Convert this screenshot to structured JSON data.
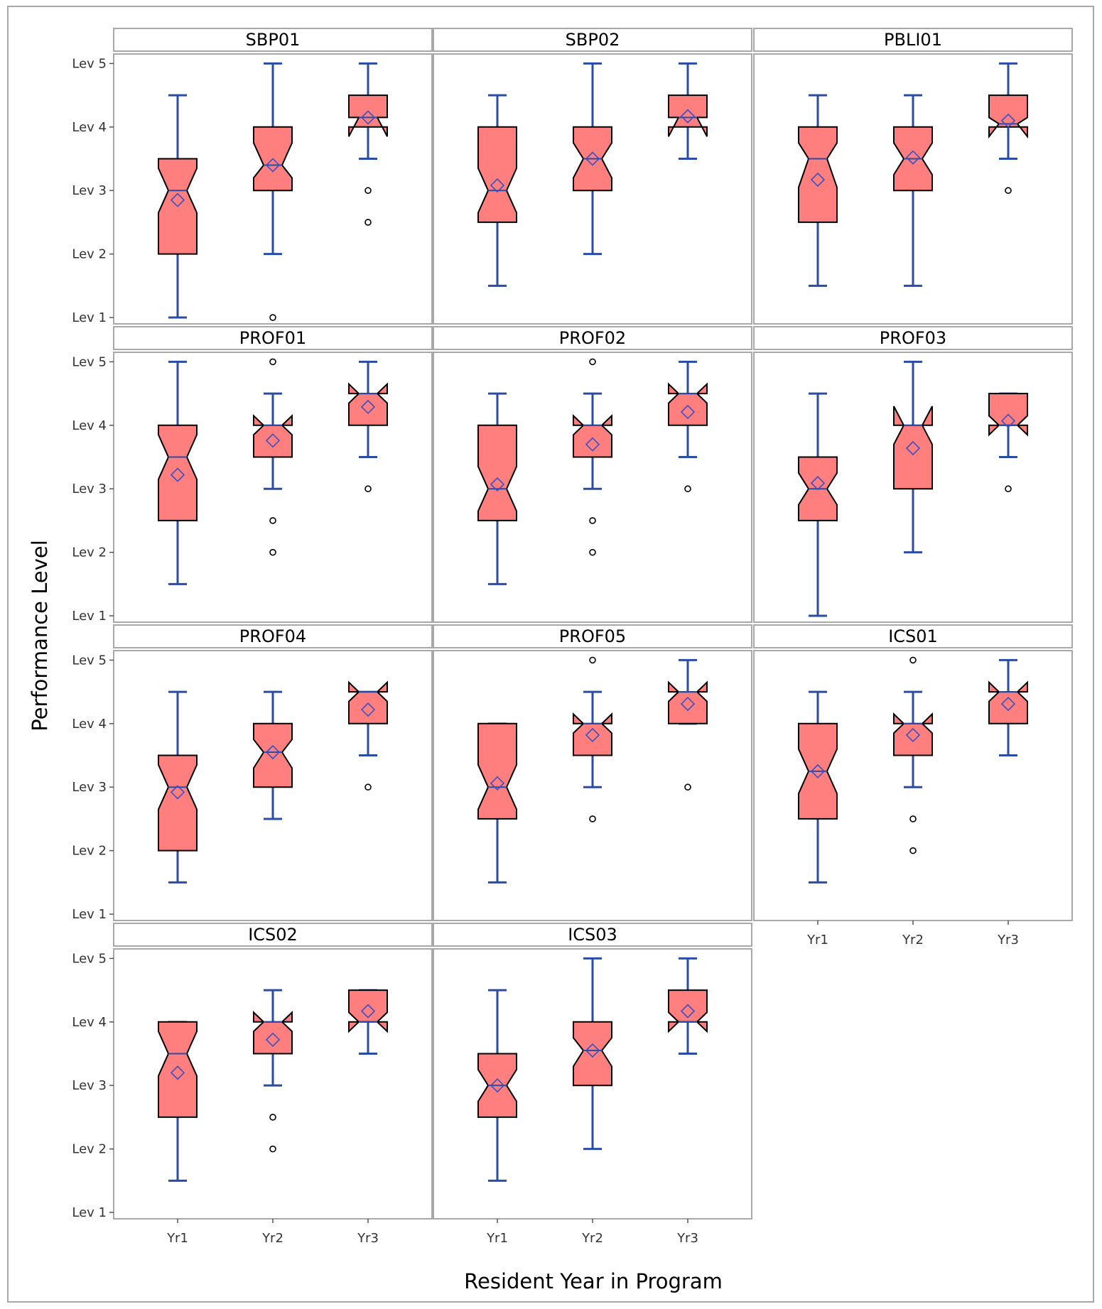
{
  "colors": {
    "box_fill": "#ff7f7f",
    "whisker": "#2a4ba6",
    "mean_marker": "#3b4fc4",
    "outlier": "#000000",
    "header_fill": "#ffffff",
    "frame": "#a8a8a8"
  },
  "chart_data": {
    "type": "box",
    "layout": "panel grid, 3 columns x 4 rows",
    "ylabel": "Performance Level",
    "xlabel": "Resident Year in Program",
    "categories": [
      "Yr1",
      "Yr2",
      "Yr3"
    ],
    "y_ticks": [
      {
        "value": 1,
        "label": "Lev 1"
      },
      {
        "value": 2,
        "label": "Lev 2"
      },
      {
        "value": 3,
        "label": "Lev 3"
      },
      {
        "value": 4,
        "label": "Lev 4"
      },
      {
        "value": 5,
        "label": "Lev 5"
      }
    ],
    "ylim": [
      0.9,
      5.15
    ],
    "notched": true,
    "panels": [
      {
        "title": "SBP01",
        "boxes": [
          {
            "category": "Yr1",
            "min": 1,
            "q1": 2,
            "median": 3,
            "q3": 3.5,
            "max": 4.5,
            "mean": 2.85,
            "notch_low": 2.65,
            "notch_high": 3.35,
            "outliers": []
          },
          {
            "category": "Yr2",
            "min": 2,
            "q1": 3,
            "median": 3.4,
            "q3": 4,
            "max": 5,
            "mean": 3.4,
            "notch_low": 3.2,
            "notch_high": 3.75,
            "outliers": [
              1
            ]
          },
          {
            "category": "Yr3",
            "min": 3.5,
            "q1": 4,
            "median": 4.15,
            "q3": 4.5,
            "max": 5,
            "mean": 4.15,
            "notch_low": 3.85,
            "notch_high": 4.15,
            "outliers": [
              3,
              2.5
            ]
          }
        ]
      },
      {
        "title": "SBP02",
        "boxes": [
          {
            "category": "Yr1",
            "min": 1.5,
            "q1": 2.5,
            "median": 3,
            "q3": 4,
            "max": 4.5,
            "mean": 3.08,
            "notch_low": 2.65,
            "notch_high": 3.35,
            "outliers": []
          },
          {
            "category": "Yr2",
            "min": 2,
            "q1": 3,
            "median": 3.5,
            "q3": 4,
            "max": 5,
            "mean": 3.5,
            "notch_low": 3.2,
            "notch_high": 3.75,
            "outliers": []
          },
          {
            "category": "Yr3",
            "min": 3.5,
            "q1": 4,
            "median": 4.15,
            "q3": 4.5,
            "max": 5,
            "mean": 4.17,
            "notch_low": 3.85,
            "notch_high": 4.15,
            "outliers": []
          }
        ]
      },
      {
        "title": "PBLI01",
        "boxes": [
          {
            "category": "Yr1",
            "min": 1.5,
            "q1": 2.5,
            "median": 3.5,
            "q3": 4,
            "max": 4.5,
            "mean": 3.17,
            "notch_low": 3.05,
            "notch_high": 3.75,
            "outliers": []
          },
          {
            "category": "Yr2",
            "min": 1.5,
            "q1": 3,
            "median": 3.5,
            "q3": 4,
            "max": 4.5,
            "mean": 3.52,
            "notch_low": 3.25,
            "notch_high": 3.75,
            "outliers": []
          },
          {
            "category": "Yr3",
            "min": 3.5,
            "q1": 4,
            "median": 4.05,
            "q3": 4.5,
            "max": 5,
            "mean": 4.1,
            "notch_low": 3.85,
            "notch_high": 4.15,
            "outliers": [
              3
            ]
          }
        ]
      },
      {
        "title": "PROF01",
        "boxes": [
          {
            "category": "Yr1",
            "min": 1.5,
            "q1": 2.5,
            "median": 3.5,
            "q3": 4,
            "max": 5,
            "mean": 3.22,
            "notch_low": 3.15,
            "notch_high": 3.85,
            "outliers": []
          },
          {
            "category": "Yr2",
            "min": 3,
            "q1": 3.5,
            "median": 4,
            "q3": 4,
            "max": 4.5,
            "mean": 3.76,
            "notch_low": 3.85,
            "notch_high": 4.15,
            "outliers": [
              5,
              2.5,
              2
            ]
          },
          {
            "category": "Yr3",
            "min": 3.5,
            "q1": 4,
            "median": 4.5,
            "q3": 4.5,
            "max": 5,
            "mean": 4.29,
            "notch_low": 4.35,
            "notch_high": 4.65,
            "outliers": [
              3
            ]
          }
        ]
      },
      {
        "title": "PROF02",
        "boxes": [
          {
            "category": "Yr1",
            "min": 1.5,
            "q1": 2.5,
            "median": 3,
            "q3": 4,
            "max": 4.5,
            "mean": 3.07,
            "notch_low": 2.65,
            "notch_high": 3.35,
            "outliers": []
          },
          {
            "category": "Yr2",
            "min": 3,
            "q1": 3.5,
            "median": 4,
            "q3": 4,
            "max": 4.5,
            "mean": 3.7,
            "notch_low": 3.85,
            "notch_high": 4.15,
            "outliers": [
              5,
              2.5,
              2
            ]
          },
          {
            "category": "Yr3",
            "min": 3.5,
            "q1": 4,
            "median": 4.5,
            "q3": 4.5,
            "max": 5,
            "mean": 4.21,
            "notch_low": 4.35,
            "notch_high": 4.65,
            "outliers": [
              3
            ]
          }
        ]
      },
      {
        "title": "PROF03",
        "boxes": [
          {
            "category": "Yr1",
            "min": 1,
            "q1": 2.5,
            "median": 3,
            "q3": 3.5,
            "max": 4.5,
            "mean": 3.09,
            "notch_low": 2.75,
            "notch_high": 3.25,
            "outliers": []
          },
          {
            "category": "Yr2",
            "min": 2,
            "q1": 3,
            "median": 4,
            "q3": 4,
            "max": 5,
            "mean": 3.64,
            "notch_low": 3.7,
            "notch_high": 4.3,
            "outliers": []
          },
          {
            "category": "Yr3",
            "min": 3.5,
            "q1": 4,
            "median": 4,
            "q3": 4.5,
            "max": 4.5,
            "mean": 4.07,
            "notch_low": 3.85,
            "notch_high": 4.15,
            "outliers": [
              3
            ]
          }
        ]
      },
      {
        "title": "PROF04",
        "boxes": [
          {
            "category": "Yr1",
            "min": 1.5,
            "q1": 2,
            "median": 3,
            "q3": 3.5,
            "max": 4.5,
            "mean": 2.92,
            "notch_low": 2.65,
            "notch_high": 3.35,
            "outliers": []
          },
          {
            "category": "Yr2",
            "min": 2.5,
            "q1": 3,
            "median": 3.55,
            "q3": 4,
            "max": 4.5,
            "mean": 3.55,
            "notch_low": 3.3,
            "notch_high": 3.75,
            "outliers": []
          },
          {
            "category": "Yr3",
            "min": 3.5,
            "q1": 4,
            "median": 4.5,
            "q3": 4.5,
            "max": 4.5,
            "mean": 4.22,
            "notch_low": 4.35,
            "notch_high": 4.65,
            "outliers": [
              3
            ]
          }
        ]
      },
      {
        "title": "PROF05",
        "boxes": [
          {
            "category": "Yr1",
            "min": 1.5,
            "q1": 2.5,
            "median": 3,
            "q3": 4,
            "max": 4,
            "mean": 3.06,
            "notch_low": 2.65,
            "notch_high": 3.35,
            "outliers": []
          },
          {
            "category": "Yr2",
            "min": 3,
            "q1": 3.5,
            "median": 4,
            "q3": 4,
            "max": 4.5,
            "mean": 3.82,
            "notch_low": 3.85,
            "notch_high": 4.15,
            "outliers": [
              5,
              2.5
            ]
          },
          {
            "category": "Yr3",
            "min": 4,
            "q1": 4,
            "median": 4.5,
            "q3": 4.5,
            "max": 5,
            "mean": 4.31,
            "notch_low": 4.35,
            "notch_high": 4.65,
            "outliers": [
              3
            ]
          }
        ]
      },
      {
        "title": "ICS01",
        "boxes": [
          {
            "category": "Yr1",
            "min": 1.5,
            "q1": 2.5,
            "median": 3.25,
            "q3": 4,
            "max": 4.5,
            "mean": 3.25,
            "notch_low": 2.9,
            "notch_high": 3.6,
            "outliers": []
          },
          {
            "category": "Yr2",
            "min": 3,
            "q1": 3.5,
            "median": 4,
            "q3": 4,
            "max": 4.5,
            "mean": 3.82,
            "notch_low": 3.85,
            "notch_high": 4.15,
            "outliers": [
              5,
              2.5,
              2
            ]
          },
          {
            "category": "Yr3",
            "min": 3.5,
            "q1": 4,
            "median": 4.5,
            "q3": 4.5,
            "max": 5,
            "mean": 4.31,
            "notch_low": 4.35,
            "notch_high": 4.65,
            "outliers": []
          }
        ]
      },
      {
        "title": "ICS02",
        "boxes": [
          {
            "category": "Yr1",
            "min": 1.5,
            "q1": 2.5,
            "median": 3.5,
            "q3": 4,
            "max": 4,
            "mean": 3.2,
            "notch_low": 3.15,
            "notch_high": 3.85,
            "outliers": []
          },
          {
            "category": "Yr2",
            "min": 3,
            "q1": 3.5,
            "median": 4,
            "q3": 4,
            "max": 4.5,
            "mean": 3.72,
            "notch_low": 3.85,
            "notch_high": 4.15,
            "outliers": [
              2.5,
              2
            ]
          },
          {
            "category": "Yr3",
            "min": 3.5,
            "q1": 4,
            "median": 4,
            "q3": 4.5,
            "max": 4.5,
            "mean": 4.17,
            "notch_low": 3.85,
            "notch_high": 4.15,
            "outliers": []
          }
        ]
      },
      {
        "title": "ICS03",
        "boxes": [
          {
            "category": "Yr1",
            "min": 1.5,
            "q1": 2.5,
            "median": 3,
            "q3": 3.5,
            "max": 4.5,
            "mean": 3,
            "notch_low": 2.75,
            "notch_high": 3.25,
            "outliers": []
          },
          {
            "category": "Yr2",
            "min": 2,
            "q1": 3,
            "median": 3.55,
            "q3": 4,
            "max": 5,
            "mean": 3.55,
            "notch_low": 3.3,
            "notch_high": 3.75,
            "outliers": []
          },
          {
            "category": "Yr3",
            "min": 3.5,
            "q1": 4,
            "median": 4,
            "q3": 4.5,
            "max": 5,
            "mean": 4.17,
            "notch_low": 3.85,
            "notch_high": 4.15,
            "outliers": []
          }
        ]
      }
    ]
  }
}
